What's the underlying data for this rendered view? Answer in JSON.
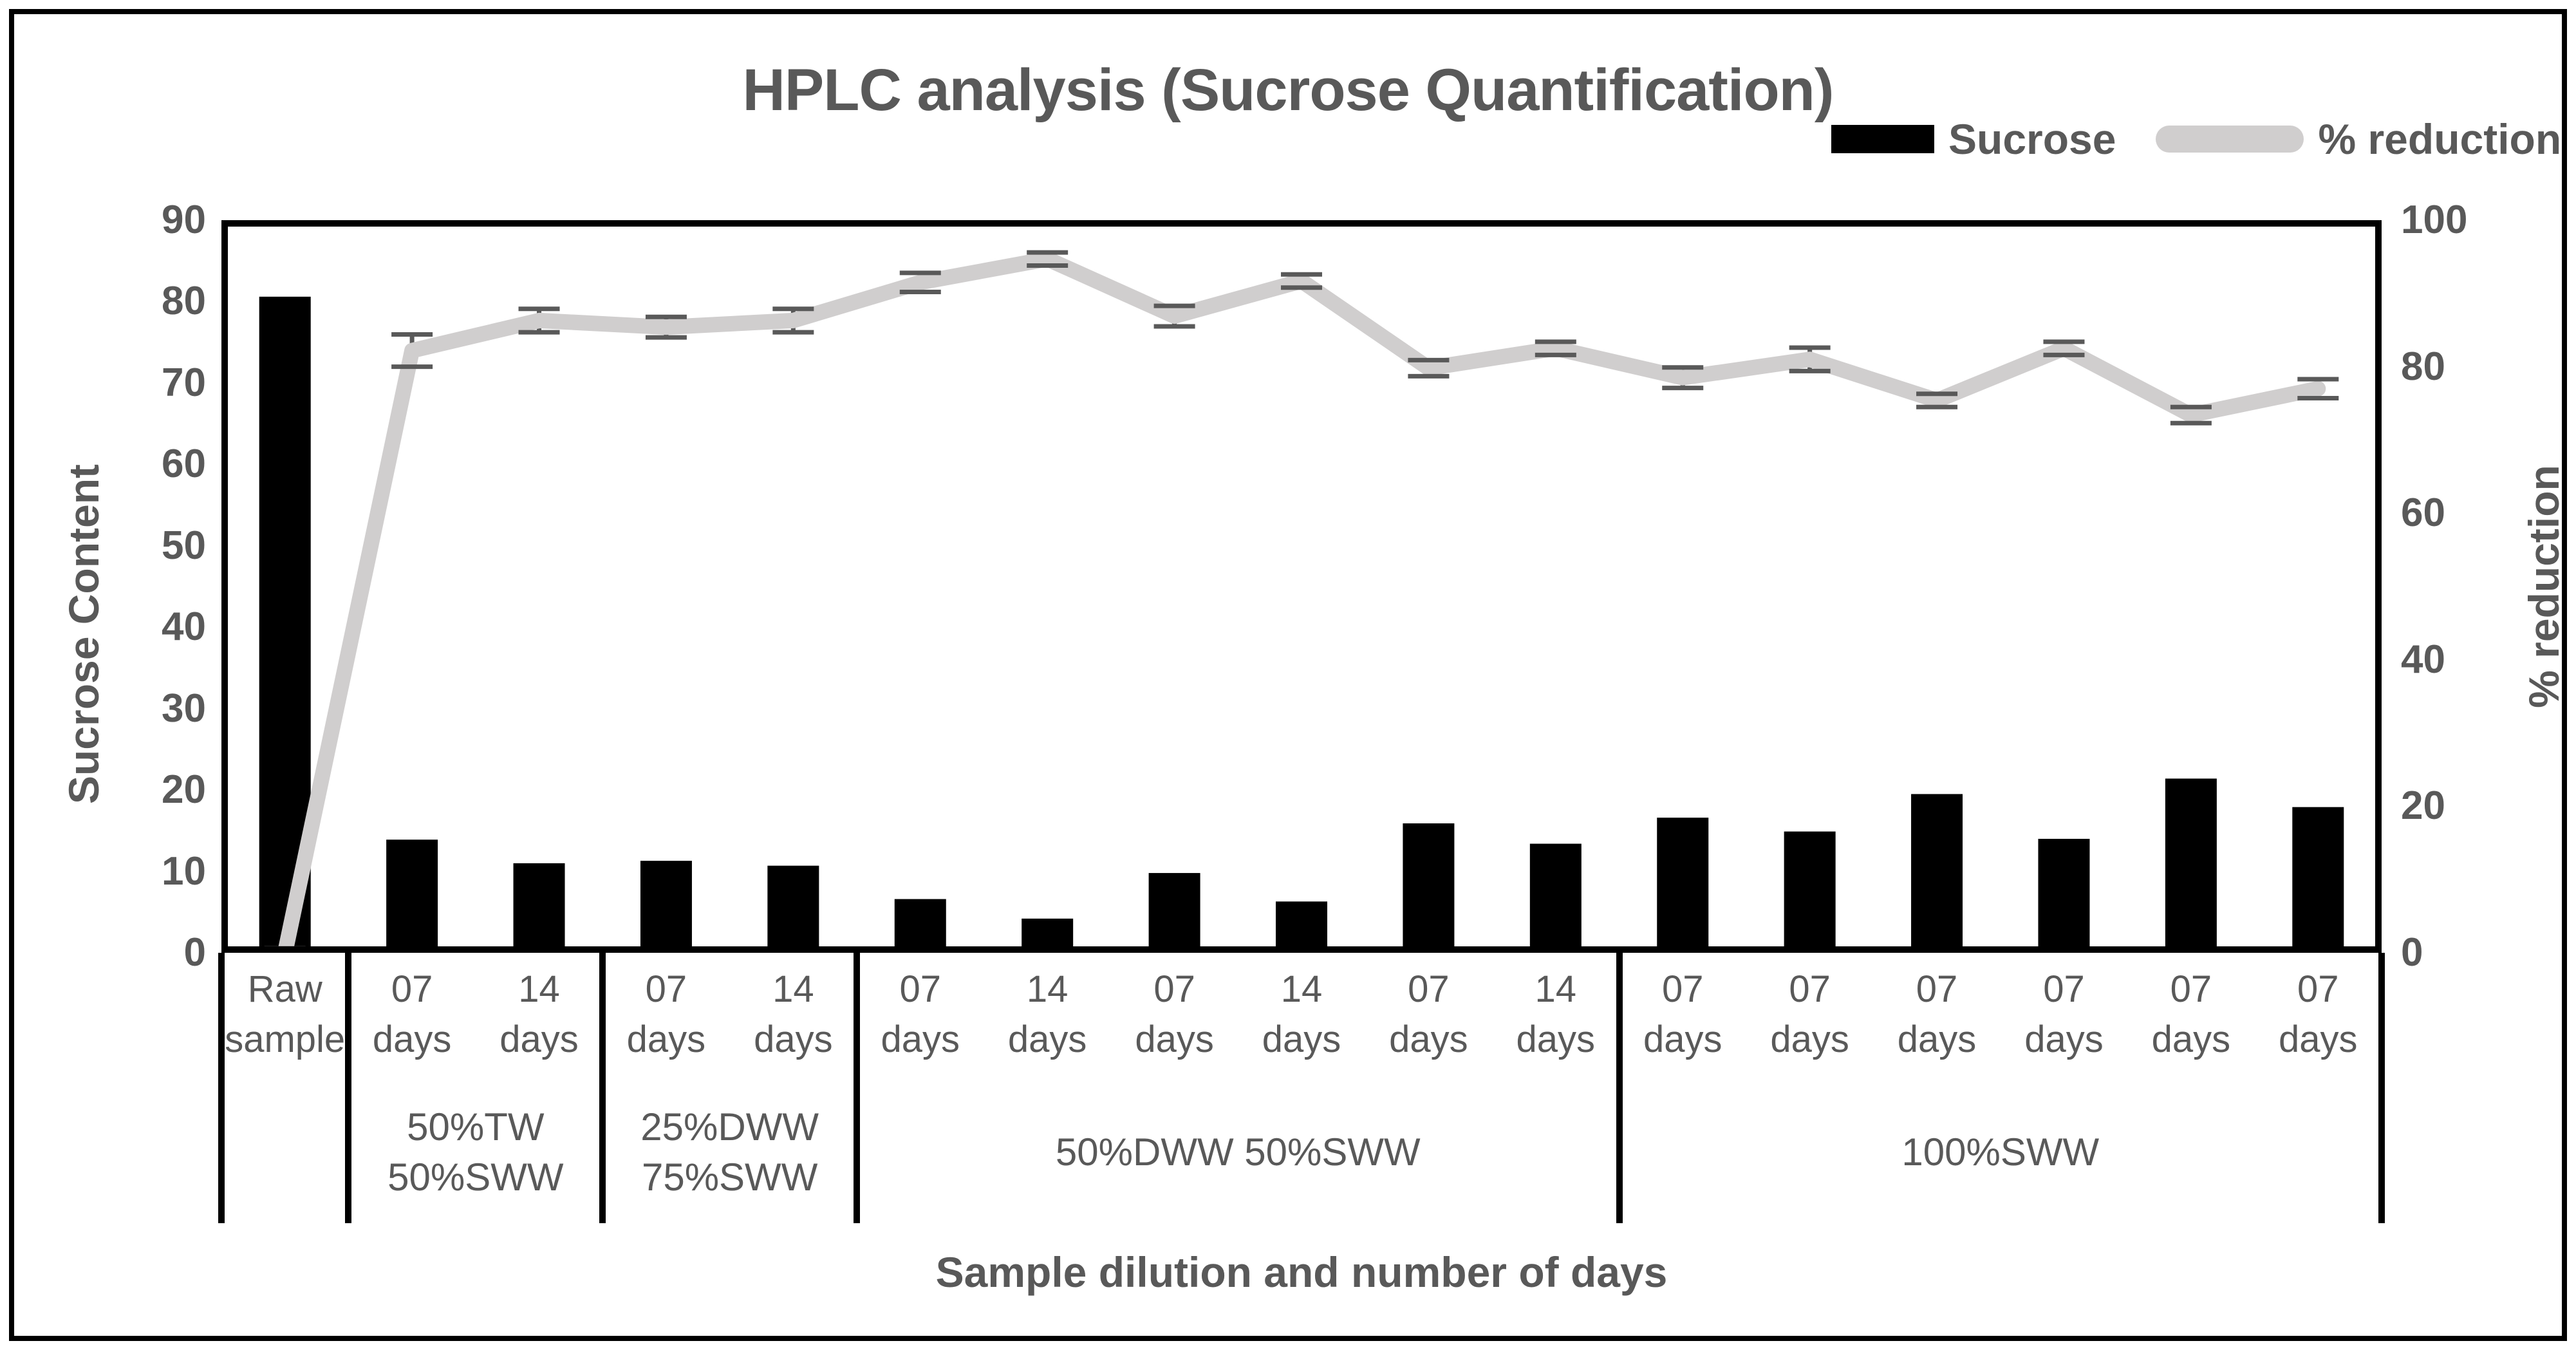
{
  "chart": {
    "title": "HPLC analysis (Sucrose Quantification)",
    "legend": [
      "Sucrose",
      "% reduction"
    ],
    "xlabel": "Sample dilution and number of days",
    "ylabel_left": "Sucrose Content",
    "ylabel_right": "% reduction"
  },
  "chart_data": {
    "type": "bar+line dual-axis",
    "title": "HPLC analysis (Sucrose Quantification)",
    "xlabel": "Sample dilution and number of days",
    "legend_position": "top-right",
    "grid": false,
    "categories": [
      "Raw\nsample",
      "07\ndays",
      "14\ndays",
      "07\ndays",
      "14\ndays",
      "07\ndays",
      "14\ndays",
      "07\ndays",
      "14\ndays",
      "07\ndays",
      "14\ndays",
      "07\ndays",
      "07\ndays",
      "07\ndays",
      "07\ndays",
      "07\ndays",
      "07\ndays"
    ],
    "groups": [
      {
        "label": "",
        "start": 0,
        "end": 0
      },
      {
        "label": "50%TW\n50%SWW",
        "start": 1,
        "end": 2
      },
      {
        "label": "25%DWW\n75%SWW",
        "start": 3,
        "end": 4
      },
      {
        "label": "50%DWW 50%SWW",
        "start": 5,
        "end": 10
      },
      {
        "label": "100%SWW",
        "start": 11,
        "end": 16
      }
    ],
    "series": [
      {
        "name": "Sucrose",
        "type": "bar",
        "axis": "left",
        "color": "#000000",
        "values": [
          80.6,
          13.9,
          11.0,
          11.3,
          10.7,
          6.6,
          4.2,
          9.8,
          6.3,
          15.9,
          13.4,
          16.6,
          14.9,
          19.5,
          14.0,
          21.4,
          17.9
        ]
      },
      {
        "name": "% reduction",
        "type": "line",
        "axis": "right",
        "color": "#d0cece",
        "values": [
          0,
          82.2,
          86.3,
          85.4,
          86.3,
          91.5,
          94.7,
          86.9,
          91.7,
          79.8,
          82.5,
          78.5,
          81.0,
          75.4,
          82.5,
          73.4,
          77.0
        ],
        "error": [
          0.6,
          2.2,
          1.6,
          1.4,
          1.6,
          1.3,
          0.9,
          1.4,
          0.9,
          1.1,
          0.9,
          1.4,
          1.6,
          0.9,
          0.9,
          1.1,
          1.3
        ]
      }
    ],
    "left_axis": {
      "label": "Sucrose Content",
      "min": 0,
      "max": 90,
      "ticks": [
        0,
        10,
        20,
        30,
        40,
        50,
        60,
        70,
        80,
        90
      ]
    },
    "right_axis": {
      "label": "% reduction",
      "min": 0,
      "max": 100,
      "ticks": [
        0,
        20,
        40,
        60,
        80,
        100
      ]
    },
    "colors": {
      "bar": "#000000",
      "line": "#d0cece",
      "error_bar": "#595959",
      "text": "#595959",
      "axis": "#000000"
    }
  }
}
